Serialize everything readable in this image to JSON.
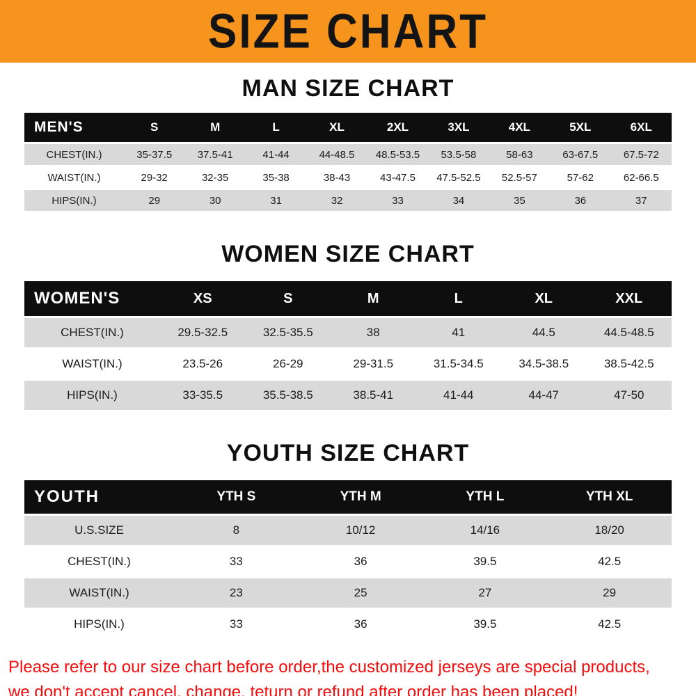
{
  "banner": {
    "title": "SIZE CHART"
  },
  "colors": {
    "banner_bg": "#f7941e",
    "table_header_bg": "#0e0e0e",
    "row_alt_bg": "#d9d9d9",
    "notice_red": "#f50d0d"
  },
  "sections": [
    {
      "heading": "MAN SIZE CHART",
      "table": {
        "corner": "MEN'S",
        "columns": [
          "S",
          "M",
          "L",
          "XL",
          "2XL",
          "3XL",
          "4XL",
          "5XL",
          "6XL"
        ],
        "rows": [
          {
            "label": "CHEST(IN.)",
            "values": [
              "35-37.5",
              "37.5-41",
              "41-44",
              "44-48.5",
              "48.5-53.5",
              "53.5-58",
              "58-63",
              "63-67.5",
              "67.5-72"
            ]
          },
          {
            "label": "WAIST(IN.)",
            "values": [
              "29-32",
              "32-35",
              "35-38",
              "38-43",
              "43-47.5",
              "47.5-52.5",
              "52.5-57",
              "57-62",
              "62-66.5"
            ]
          },
          {
            "label": "HIPS(IN.)",
            "values": [
              "29",
              "30",
              "31",
              "32",
              "33",
              "34",
              "35",
              "36",
              "37"
            ]
          }
        ]
      }
    },
    {
      "heading": "WOMEN SIZE CHART",
      "table": {
        "corner": "WOMEN'S",
        "columns": [
          "XS",
          "S",
          "M",
          "L",
          "XL",
          "XXL"
        ],
        "rows": [
          {
            "label": "CHEST(IN.)",
            "values": [
              "29.5-32.5",
              "32.5-35.5",
              "38",
              "41",
              "44.5",
              "44.5-48.5"
            ]
          },
          {
            "label": "WAIST(IN.)",
            "values": [
              "23.5-26",
              "26-29",
              "29-31.5",
              "31.5-34.5",
              "34.5-38.5",
              "38.5-42.5"
            ]
          },
          {
            "label": "HIPS(IN.)",
            "values": [
              "33-35.5",
              "35.5-38.5",
              "38.5-41",
              "41-44",
              "44-47",
              "47-50"
            ]
          }
        ]
      }
    },
    {
      "heading": "YOUTH SIZE CHART",
      "table": {
        "corner": "YOUTH",
        "columns": [
          "YTH S",
          "YTH M",
          "YTH L",
          "YTH XL"
        ],
        "rows": [
          {
            "label": "U.S.SIZE",
            "values": [
              "8",
              "10/12",
              "14/16",
              "18/20"
            ]
          },
          {
            "label": "CHEST(IN.)",
            "values": [
              "33",
              "36",
              "39.5",
              "42.5"
            ]
          },
          {
            "label": "WAIST(IN.)",
            "values": [
              "23",
              "25",
              "27",
              "29"
            ]
          },
          {
            "label": "HIPS(IN.)",
            "values": [
              "33",
              "36",
              "39.5",
              "42.5"
            ]
          }
        ]
      }
    }
  ],
  "footer": {
    "line1": "Please refer to our size chart before order,the customized jerseys are special products,",
    "line2": "we don't accept cancel, change, teturn or refund after order has been placed!"
  }
}
